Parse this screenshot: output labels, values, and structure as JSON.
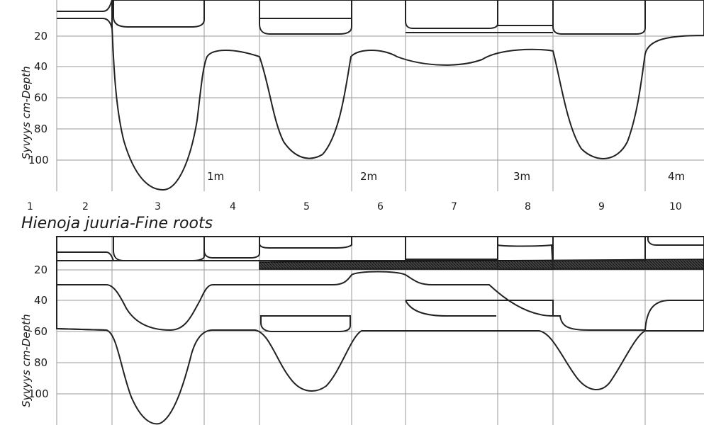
{
  "top_panel": {
    "ylabel": "Syvyys cm-Depth",
    "ticks": [
      "20",
      "40",
      "60",
      "80",
      "100"
    ],
    "meter_labels": [
      "1m",
      "2m",
      "3m",
      "4m"
    ]
  },
  "column_numbers": [
    "1",
    "2",
    "3",
    "4",
    "5",
    "6",
    "7",
    "8",
    "9",
    "10"
  ],
  "middle_title": "Hienoja juuria-Fine roots",
  "bottom_panel": {
    "ylabel": "Syvyys cm-Depth",
    "ticks": [
      "20",
      "40",
      "60",
      "80",
      "100"
    ]
  },
  "colors": {
    "ink": "#1a1a1a",
    "grid": "#9a9a9a",
    "paper": "#ffffff"
  }
}
